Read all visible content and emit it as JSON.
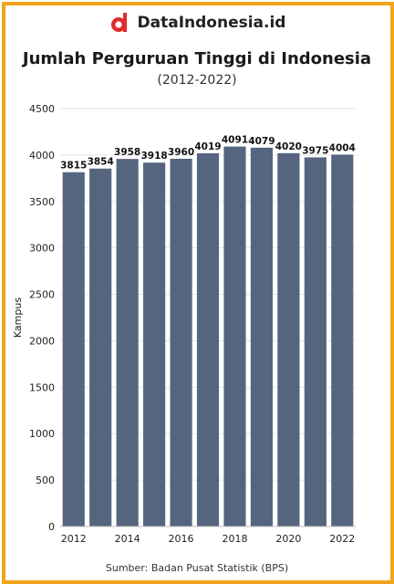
{
  "brand": {
    "name": "DataIndonesia.id",
    "logo_icon": "dataindonesia-logo-icon",
    "logo_color": "#e02b2b"
  },
  "frame_color": "#f2a51c",
  "bar_color": "#56657f",
  "source": "Sumber: Badan Pusat Statistik (BPS)",
  "chart_data": {
    "type": "bar",
    "title": "Jumlah Perguruan Tinggi di Indonesia",
    "subtitle": "(2012-2022)",
    "xlabel": "",
    "ylabel": "Kampus",
    "categories": [
      "2012",
      "2013",
      "2014",
      "2015",
      "2016",
      "2017",
      "2018",
      "2019",
      "2020",
      "2021",
      "2022"
    ],
    "xtick_labels": [
      "2012",
      "",
      "2014",
      "",
      "2016",
      "",
      "2018",
      "",
      "2020",
      "",
      "2022"
    ],
    "values": [
      3815,
      3854,
      3958,
      3918,
      3960,
      4019,
      4091,
      4079,
      4020,
      3975,
      4004
    ],
    "ylim": [
      0,
      4500
    ],
    "yticks": [
      0,
      500,
      1000,
      1500,
      2000,
      2500,
      3000,
      3500,
      4000,
      4500
    ],
    "grid": true,
    "data_labels": true
  }
}
